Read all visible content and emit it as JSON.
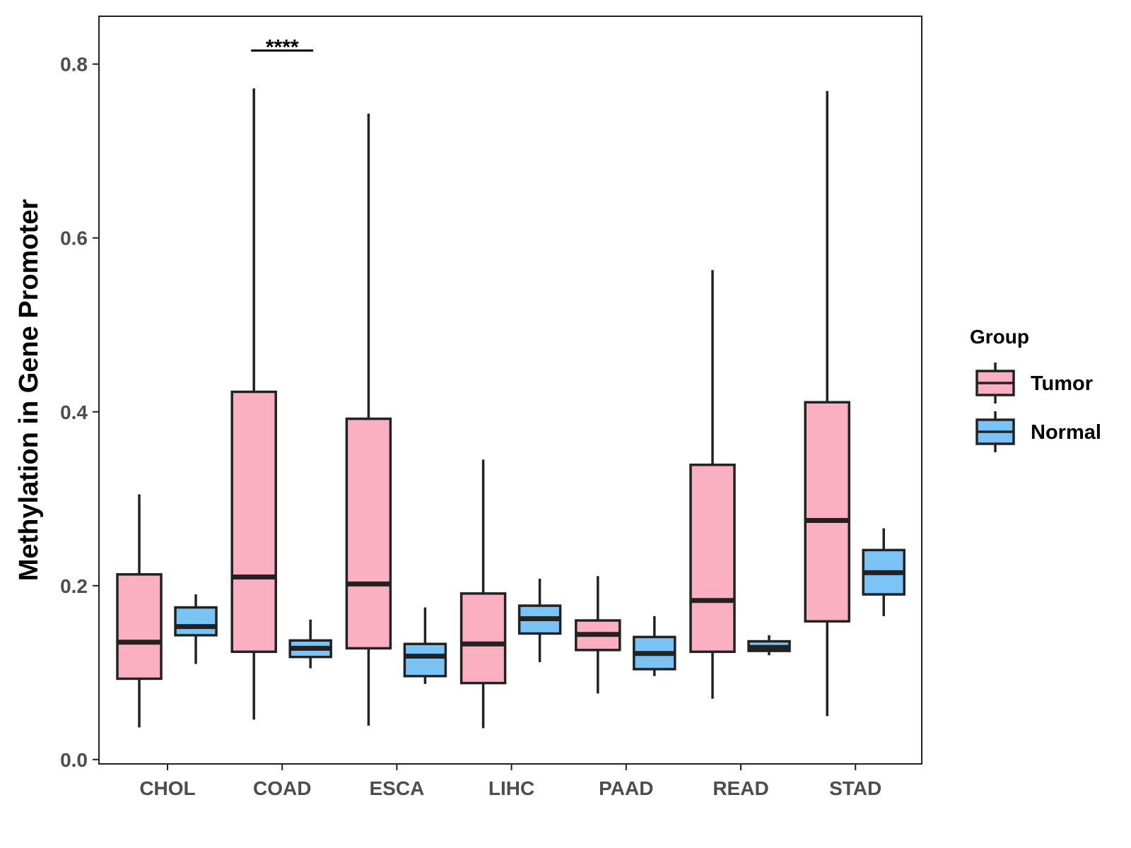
{
  "chart_data": {
    "type": "boxplot",
    "title": "",
    "xlabel": "",
    "ylabel": "Methylation in Gene Promoter",
    "ylim": [
      -0.005,
      0.855
    ],
    "yticks": [
      0.0,
      0.2,
      0.4,
      0.6,
      0.8
    ],
    "ytick_labels": [
      "0.0",
      "0.2",
      "0.4",
      "0.6",
      "0.8"
    ],
    "categories": [
      "CHOL",
      "COAD",
      "ESCA",
      "LIHC",
      "PAAD",
      "READ",
      "STAD"
    ],
    "legend": {
      "title": "Group",
      "position": "right",
      "entries": [
        "Tumor",
        "Normal"
      ]
    },
    "colors": {
      "Tumor": "#fbb0c1",
      "Normal": "#7cc3f5",
      "outline": "#222222"
    },
    "series": [
      {
        "name": "Tumor",
        "boxes": [
          {
            "category": "CHOL",
            "min": 0.037,
            "q1": 0.093,
            "median": 0.135,
            "q3": 0.213,
            "max": 0.305
          },
          {
            "category": "COAD",
            "min": 0.046,
            "q1": 0.124,
            "median": 0.21,
            "q3": 0.423,
            "max": 0.772
          },
          {
            "category": "ESCA",
            "min": 0.039,
            "q1": 0.128,
            "median": 0.202,
            "q3": 0.392,
            "max": 0.743
          },
          {
            "category": "LIHC",
            "min": 0.036,
            "q1": 0.088,
            "median": 0.133,
            "q3": 0.191,
            "max": 0.345
          },
          {
            "category": "PAAD",
            "min": 0.076,
            "q1": 0.126,
            "median": 0.144,
            "q3": 0.16,
            "max": 0.211
          },
          {
            "category": "READ",
            "min": 0.07,
            "q1": 0.124,
            "median": 0.183,
            "q3": 0.339,
            "max": 0.563
          },
          {
            "category": "STAD",
            "min": 0.05,
            "q1": 0.159,
            "median": 0.275,
            "q3": 0.411,
            "max": 0.769
          }
        ]
      },
      {
        "name": "Normal",
        "boxes": [
          {
            "category": "CHOL",
            "min": 0.11,
            "q1": 0.143,
            "median": 0.153,
            "q3": 0.175,
            "max": 0.19
          },
          {
            "category": "COAD",
            "min": 0.105,
            "q1": 0.118,
            "median": 0.128,
            "q3": 0.137,
            "max": 0.161
          },
          {
            "category": "ESCA",
            "min": 0.087,
            "q1": 0.096,
            "median": 0.119,
            "q3": 0.133,
            "max": 0.175
          },
          {
            "category": "LIHC",
            "min": 0.112,
            "q1": 0.145,
            "median": 0.162,
            "q3": 0.177,
            "max": 0.208
          },
          {
            "category": "PAAD",
            "min": 0.096,
            "q1": 0.104,
            "median": 0.122,
            "q3": 0.141,
            "max": 0.165
          },
          {
            "category": "READ",
            "min": 0.12,
            "q1": 0.125,
            "median": 0.129,
            "q3": 0.136,
            "max": 0.143
          },
          {
            "category": "STAD",
            "min": 0.165,
            "q1": 0.19,
            "median": 0.215,
            "q3": 0.241,
            "max": 0.266
          }
        ]
      }
    ],
    "annotations": [
      {
        "category": "COAD",
        "label": "****",
        "y": 0.818
      }
    ]
  }
}
